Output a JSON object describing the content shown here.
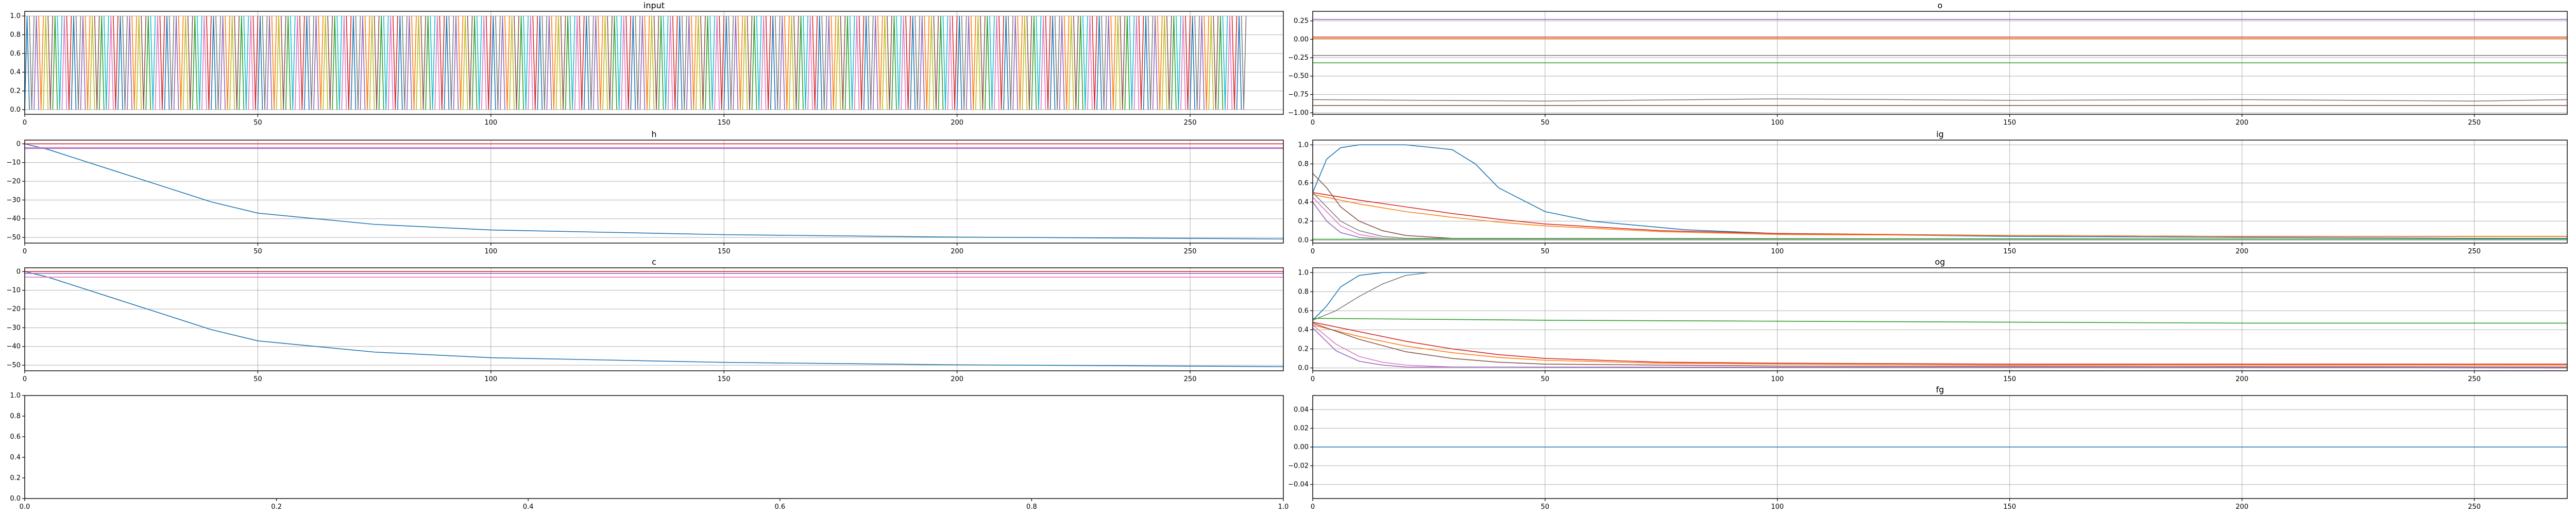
{
  "colors": [
    "#1f77b4",
    "#ff7f0e",
    "#2ca02c",
    "#d62728",
    "#9467bd",
    "#8c564b",
    "#e377c2",
    "#7f7f7f",
    "#bcbd22",
    "#17becf"
  ],
  "chart_data": [
    {
      "id": "input",
      "type": "line",
      "title": "input",
      "xlim": [
        0,
        270
      ],
      "ylim": [
        -0.05,
        1.05
      ],
      "xticks": [
        0,
        50,
        100,
        150,
        200,
        250
      ],
      "yticks": [
        0.0,
        0.2,
        0.4,
        0.6,
        0.8,
        1.0
      ],
      "grid": true,
      "series": [
        {
          "color_index": 0,
          "pattern": "one-hot",
          "x": [
            0,
            10,
            20,
            30,
            40,
            50,
            60,
            70,
            80,
            90,
            100,
            110,
            120,
            130,
            140,
            150,
            160,
            170,
            180,
            190,
            200,
            210,
            220,
            230,
            240,
            250,
            262
          ],
          "y": [
            1,
            0,
            1,
            0,
            1,
            0,
            1,
            0,
            1,
            0,
            1,
            0,
            1,
            0,
            1,
            0,
            1,
            0,
            1,
            0,
            1,
            0,
            1,
            0,
            1,
            0,
            1
          ]
        }
      ]
    },
    {
      "id": "o",
      "type": "line",
      "title": "o",
      "xlim": [
        0,
        270
      ],
      "ylim": [
        -1.02,
        0.38
      ],
      "xticks": [
        0,
        50,
        100,
        150,
        200,
        250
      ],
      "yticks": [
        -1.0,
        -0.75,
        -0.5,
        -0.25,
        0.0,
        0.25
      ],
      "grid": true,
      "series": [
        {
          "color_index": 4,
          "x": [
            0,
            50,
            100,
            150,
            200,
            250,
            270
          ],
          "y": [
            0.27,
            0.27,
            0.27,
            0.27,
            0.27,
            0.27,
            0.27
          ]
        },
        {
          "color_index": 3,
          "x": [
            0,
            50,
            100,
            150,
            200,
            250,
            270
          ],
          "y": [
            0.03,
            0.03,
            0.03,
            0.03,
            0.03,
            0.03,
            0.03
          ]
        },
        {
          "color_index": 1,
          "x": [
            0,
            50,
            100,
            150,
            200,
            250,
            270
          ],
          "y": [
            0.01,
            0.01,
            0.01,
            0.01,
            0.01,
            0.01,
            0.01
          ]
        },
        {
          "color_index": 7,
          "x": [
            0,
            50,
            100,
            150,
            200,
            250,
            270
          ],
          "y": [
            -0.22,
            -0.22,
            -0.22,
            -0.22,
            -0.22,
            -0.22,
            -0.22
          ]
        },
        {
          "color_index": 2,
          "x": [
            0,
            50,
            100,
            150,
            200,
            250,
            270
          ],
          "y": [
            -0.32,
            -0.32,
            -0.32,
            -0.32,
            -0.32,
            -0.32,
            -0.32
          ]
        },
        {
          "color_index": 7,
          "x": [
            0,
            50,
            100,
            150,
            200,
            250,
            270
          ],
          "y": [
            -0.82,
            -0.84,
            -0.81,
            -0.83,
            -0.82,
            -0.84,
            -0.82
          ]
        },
        {
          "color_index": 5,
          "x": [
            0,
            50,
            100,
            150,
            200,
            250,
            270
          ],
          "y": [
            -0.9,
            -0.9,
            -0.9,
            -0.9,
            -0.9,
            -0.9,
            -0.9
          ]
        }
      ]
    },
    {
      "id": "h",
      "type": "line",
      "title": "h",
      "xlim": [
        0,
        270
      ],
      "ylim": [
        -53,
        2
      ],
      "xticks": [
        0,
        50,
        100,
        150,
        200,
        250
      ],
      "yticks": [
        0,
        -10,
        -20,
        -30,
        -40,
        -50
      ],
      "grid": true,
      "series": [
        {
          "color_index": 0,
          "x": [
            0,
            5,
            10,
            20,
            30,
            40,
            50,
            75,
            100,
            150,
            200,
            250,
            270
          ],
          "y": [
            0,
            -3,
            -7,
            -15,
            -23,
            -31,
            -37,
            -43,
            -46,
            -48.5,
            -49.8,
            -50.5,
            -50.8
          ]
        },
        {
          "color_index": 3,
          "x": [
            0,
            270
          ],
          "y": [
            0,
            0
          ]
        },
        {
          "color_index": 6,
          "x": [
            0,
            270
          ],
          "y": [
            -2,
            -2
          ]
        },
        {
          "color_index": 4,
          "x": [
            0,
            270
          ],
          "y": [
            -2.5,
            -2.5
          ]
        }
      ]
    },
    {
      "id": "ig",
      "type": "line",
      "title": "ig",
      "xlim": [
        0,
        270
      ],
      "ylim": [
        -0.03,
        1.05
      ],
      "xticks": [
        0,
        50,
        100,
        150,
        200,
        250
      ],
      "yticks": [
        0.0,
        0.2,
        0.4,
        0.6,
        0.8,
        1.0
      ],
      "grid": true,
      "series": [
        {
          "color_index": 0,
          "x": [
            0,
            3,
            6,
            10,
            20,
            30,
            35,
            40,
            50,
            60,
            80,
            100,
            150,
            200,
            250,
            270
          ],
          "y": [
            0.5,
            0.85,
            0.97,
            1.0,
            1.0,
            0.95,
            0.8,
            0.55,
            0.3,
            0.2,
            0.11,
            0.07,
            0.04,
            0.03,
            0.02,
            0.02
          ]
        },
        {
          "color_index": 3,
          "x": [
            0,
            10,
            20,
            30,
            40,
            50,
            75,
            100,
            150,
            200,
            270
          ],
          "y": [
            0.5,
            0.42,
            0.35,
            0.28,
            0.22,
            0.17,
            0.1,
            0.07,
            0.05,
            0.04,
            0.04
          ]
        },
        {
          "color_index": 1,
          "x": [
            0,
            10,
            20,
            30,
            40,
            50,
            75,
            100,
            150,
            200,
            270
          ],
          "y": [
            0.48,
            0.38,
            0.3,
            0.24,
            0.19,
            0.15,
            0.09,
            0.06,
            0.05,
            0.04,
            0.04
          ]
        },
        {
          "color_index": 5,
          "x": [
            0,
            3,
            6,
            10,
            15,
            20,
            30
          ],
          "y": [
            0.7,
            0.55,
            0.35,
            0.2,
            0.1,
            0.05,
            0.02
          ]
        },
        {
          "color_index": 6,
          "x": [
            0,
            3,
            6,
            10,
            15,
            20
          ],
          "y": [
            0.45,
            0.3,
            0.15,
            0.06,
            0.02,
            0.01
          ]
        },
        {
          "color_index": 4,
          "x": [
            0,
            3,
            6,
            10,
            15
          ],
          "y": [
            0.4,
            0.2,
            0.08,
            0.03,
            0.01
          ]
        },
        {
          "color_index": 7,
          "x": [
            0,
            3,
            6,
            10,
            15,
            20,
            270
          ],
          "y": [
            0.5,
            0.35,
            0.2,
            0.1,
            0.04,
            0.02,
            0.01
          ]
        },
        {
          "color_index": 2,
          "x": [
            0,
            270
          ],
          "y": [
            0.01,
            0.01
          ]
        }
      ]
    },
    {
      "id": "c",
      "type": "line",
      "title": "c",
      "xlim": [
        0,
        270
      ],
      "ylim": [
        -53,
        2
      ],
      "xticks": [
        0,
        50,
        100,
        150,
        200,
        250
      ],
      "yticks": [
        0,
        -10,
        -20,
        -30,
        -40,
        -50
      ],
      "grid": true,
      "series": [
        {
          "color_index": 0,
          "x": [
            0,
            5,
            10,
            20,
            30,
            40,
            50,
            75,
            100,
            150,
            200,
            250,
            270
          ],
          "y": [
            0,
            -3,
            -7,
            -15,
            -23,
            -31,
            -37,
            -43,
            -46,
            -48.5,
            -49.8,
            -50.5,
            -50.8
          ]
        },
        {
          "color_index": 3,
          "x": [
            0,
            270
          ],
          "y": [
            0,
            0
          ]
        },
        {
          "color_index": 4,
          "x": [
            0,
            270
          ],
          "y": [
            -1,
            -1
          ]
        },
        {
          "color_index": 6,
          "x": [
            0,
            270
          ],
          "y": [
            -3,
            -3
          ]
        }
      ]
    },
    {
      "id": "og",
      "type": "line",
      "title": "og",
      "xlim": [
        0,
        270
      ],
      "ylim": [
        -0.03,
        1.05
      ],
      "xticks": [
        0,
        50,
        100,
        150,
        200,
        250
      ],
      "yticks": [
        0.0,
        0.2,
        0.4,
        0.6,
        0.8,
        1.0
      ],
      "grid": true,
      "series": [
        {
          "color_index": 0,
          "x": [
            0,
            3,
            6,
            10,
            15,
            20,
            270
          ],
          "y": [
            0.5,
            0.65,
            0.85,
            0.97,
            1.0,
            1.0,
            1.0
          ]
        },
        {
          "color_index": 7,
          "x": [
            0,
            5,
            10,
            15,
            20,
            25,
            270
          ],
          "y": [
            0.5,
            0.6,
            0.75,
            0.88,
            0.97,
            1.0,
            1.0
          ]
        },
        {
          "color_index": 2,
          "x": [
            0,
            50,
            100,
            150,
            200,
            250,
            270
          ],
          "y": [
            0.52,
            0.5,
            0.49,
            0.48,
            0.47,
            0.47,
            0.47
          ]
        },
        {
          "color_index": 3,
          "x": [
            0,
            10,
            20,
            30,
            40,
            50,
            75,
            100,
            150,
            200,
            270
          ],
          "y": [
            0.48,
            0.38,
            0.28,
            0.2,
            0.14,
            0.1,
            0.06,
            0.05,
            0.04,
            0.04,
            0.04
          ]
        },
        {
          "color_index": 1,
          "x": [
            0,
            10,
            20,
            30,
            40,
            50,
            75,
            100,
            150,
            200,
            270
          ],
          "y": [
            0.45,
            0.33,
            0.23,
            0.16,
            0.11,
            0.08,
            0.05,
            0.04,
            0.03,
            0.03,
            0.03
          ]
        },
        {
          "color_index": 5,
          "x": [
            0,
            10,
            20,
            30,
            40,
            50,
            100,
            270
          ],
          "y": [
            0.47,
            0.3,
            0.17,
            0.1,
            0.06,
            0.04,
            0.02,
            0.01
          ]
        },
        {
          "color_index": 6,
          "x": [
            0,
            5,
            10,
            15,
            20,
            30,
            270
          ],
          "y": [
            0.45,
            0.25,
            0.12,
            0.06,
            0.03,
            0.01,
            0.0
          ]
        },
        {
          "color_index": 4,
          "x": [
            0,
            5,
            10,
            15,
            20,
            270
          ],
          "y": [
            0.42,
            0.18,
            0.07,
            0.03,
            0.01,
            0.0
          ]
        }
      ]
    },
    {
      "id": "empty",
      "type": "line",
      "title": "",
      "xlim": [
        0,
        1
      ],
      "ylim": [
        0,
        1
      ],
      "xticks": [
        0.0,
        0.2,
        0.4,
        0.6,
        0.8,
        1.0
      ],
      "yticks": [
        0.0,
        0.2,
        0.4,
        0.6,
        0.8,
        1.0
      ],
      "grid": false,
      "series": []
    },
    {
      "id": "fg",
      "type": "line",
      "title": "fg",
      "xlim": [
        0,
        270
      ],
      "ylim": [
        -0.055,
        0.055
      ],
      "xticks": [
        0,
        50,
        100,
        150,
        200,
        250
      ],
      "yticks": [
        -0.04,
        -0.02,
        0.0,
        0.02,
        0.04
      ],
      "grid": true,
      "series": [
        {
          "color_index": 0,
          "x": [
            0,
            270
          ],
          "y": [
            0,
            0
          ]
        }
      ]
    }
  ]
}
